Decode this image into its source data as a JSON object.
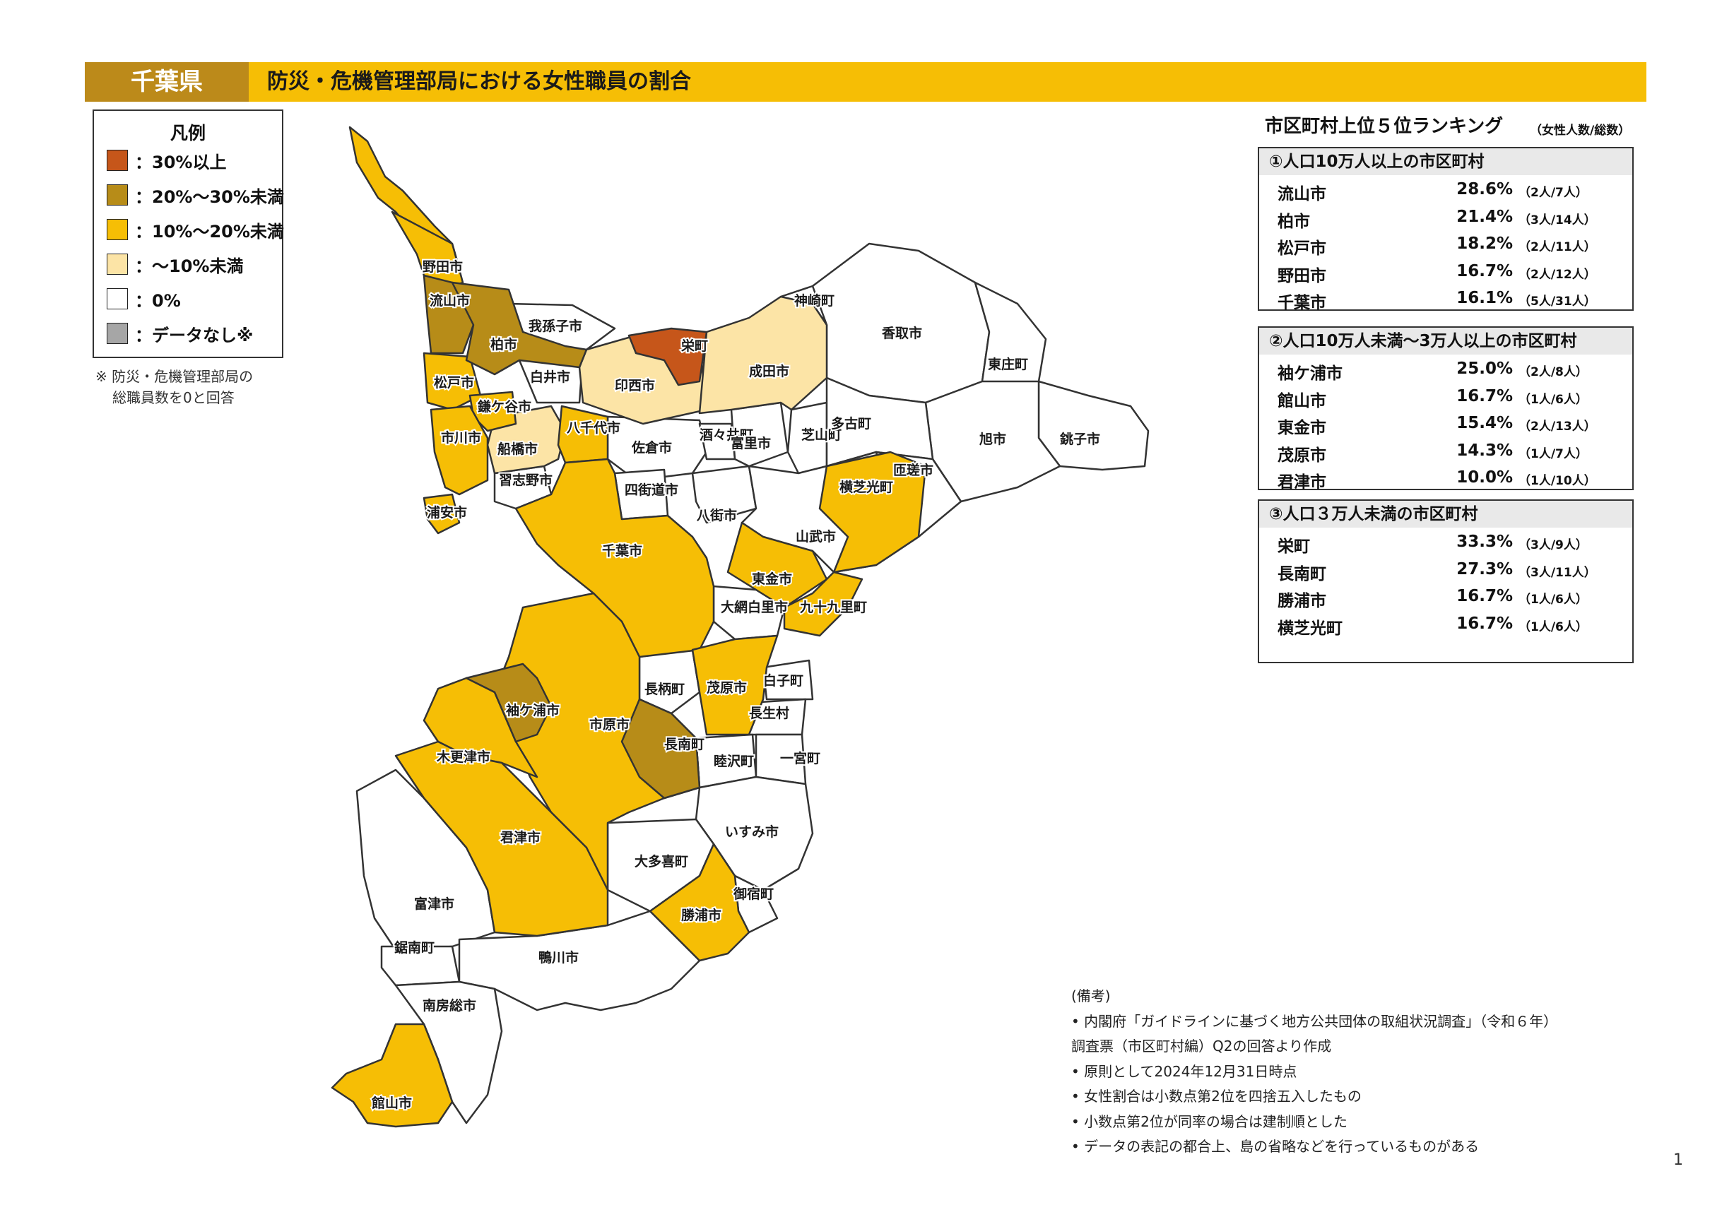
{
  "header": {
    "prefecture": "千葉県",
    "title": "防災・危機管理部局における女性職員の割合"
  },
  "legend": {
    "title": "凡例",
    "items": [
      {
        "label": "：30%以上",
        "color": "#C6561A"
      },
      {
        "label": "：20%～30%未満",
        "color": "#B78C18"
      },
      {
        "label": "：10%～20%未満",
        "color": "#F6BE05"
      },
      {
        "label": "：～10%未満",
        "color": "#FCE4A6"
      },
      {
        "label": "：0%",
        "color": "#FFFFFF"
      },
      {
        "label": "：データなし※",
        "color": "#A6A6A6"
      }
    ],
    "note_line1": "※ 防災・危機管理部局の",
    "note_line2": "総職員数を0と回答"
  },
  "ranking": {
    "title": "市区町村上位５位ランキング",
    "unit": "（女性人数/総数）",
    "groups": [
      {
        "header": "①人口10万人以上の市区町村",
        "rows": [
          {
            "name": "流山市",
            "pct": "28.6%",
            "count": "（2人/7人）"
          },
          {
            "name": "柏市",
            "pct": "21.4%",
            "count": "（3人/14人）"
          },
          {
            "name": "松戸市",
            "pct": "18.2%",
            "count": "（2人/11人）"
          },
          {
            "name": "野田市",
            "pct": "16.7%",
            "count": "（2人/12人）"
          },
          {
            "name": "千葉市",
            "pct": "16.1%",
            "count": "（5人/31人）"
          }
        ]
      },
      {
        "header": "②人口10万人未満～3万人以上の市区町村",
        "rows": [
          {
            "name": "袖ケ浦市",
            "pct": "25.0%",
            "count": "（2人/8人）"
          },
          {
            "name": "館山市",
            "pct": "16.7%",
            "count": "（1人/6人）"
          },
          {
            "name": "東金市",
            "pct": "15.4%",
            "count": "（2人/13人）"
          },
          {
            "name": "茂原市",
            "pct": "14.3%",
            "count": "（1人/7人）"
          },
          {
            "name": "君津市",
            "pct": "10.0%",
            "count": "（1人/10人）"
          }
        ]
      },
      {
        "header": "③人口３万人未満の市区町村",
        "rows": [
          {
            "name": "栄町",
            "pct": "33.3%",
            "count": "（3人/9人）"
          },
          {
            "name": "長南町",
            "pct": "27.3%",
            "count": "（3人/11人）"
          },
          {
            "name": "勝浦市",
            "pct": "16.7%",
            "count": "（1人/6人）"
          },
          {
            "name": "横芝光町",
            "pct": "16.7%",
            "count": "（1人/6人）"
          }
        ]
      }
    ]
  },
  "remarks": {
    "title": "(備考)",
    "lines": [
      "•  内閣府「ガイドラインに基づく地方公共団体の取組状況調査」（令和６年）",
      "    調査票（市区町村編）Q2の回答より作成",
      "•  原則として2024年12月31日時点",
      "•  女性割合は小数点第2位を四捨五入したもの",
      "•  小数点第2位が同率の場合は建制順とした",
      "•  データの表記の都合上、島の省略などを行っているものがある"
    ]
  },
  "page_number": "1",
  "map": {
    "municipalities": [
      {
        "name": "野田市",
        "category": "10-20"
      },
      {
        "name": "流山市",
        "category": "20-30"
      },
      {
        "name": "柏市",
        "category": "20-30"
      },
      {
        "name": "我孫子市",
        "category": "0"
      },
      {
        "name": "栄町",
        "category": "30+"
      },
      {
        "name": "印西市",
        "category": "<10"
      },
      {
        "name": "成田市",
        "category": "<10"
      },
      {
        "name": "神崎町",
        "category": "0"
      },
      {
        "name": "香取市",
        "category": "0"
      },
      {
        "name": "東庄町",
        "category": "0"
      },
      {
        "name": "銚子市",
        "category": "0"
      },
      {
        "name": "旭市",
        "category": "0"
      },
      {
        "name": "松戸市",
        "category": "10-20"
      },
      {
        "name": "白井市",
        "category": "0"
      },
      {
        "name": "鎌ケ谷市",
        "category": "10-20"
      },
      {
        "name": "市川市",
        "category": "10-20"
      },
      {
        "name": "船橋市",
        "category": "<10"
      },
      {
        "name": "八千代市",
        "category": "10-20"
      },
      {
        "name": "佐倉市",
        "category": "0"
      },
      {
        "name": "酒々井町",
        "category": "0"
      },
      {
        "name": "富里市",
        "category": "0"
      },
      {
        "name": "芝山町",
        "category": "0"
      },
      {
        "name": "多古町",
        "category": "0"
      },
      {
        "name": "匝瑳市",
        "category": "0"
      },
      {
        "name": "横芝光町",
        "category": "10-20"
      },
      {
        "name": "浦安市",
        "category": "10-20"
      },
      {
        "name": "習志野市",
        "category": "0"
      },
      {
        "name": "四街道市",
        "category": "0"
      },
      {
        "name": "八街市",
        "category": "0"
      },
      {
        "name": "山武市",
        "category": "0"
      },
      {
        "name": "千葉市",
        "category": "10-20"
      },
      {
        "name": "東金市",
        "category": "10-20"
      },
      {
        "name": "大網白里市",
        "category": "0"
      },
      {
        "name": "九十九里町",
        "category": "10-20"
      },
      {
        "name": "長柄町",
        "category": "0"
      },
      {
        "name": "茂原市",
        "category": "10-20"
      },
      {
        "name": "白子町",
        "category": "0"
      },
      {
        "name": "長生村",
        "category": "0"
      },
      {
        "name": "袖ケ浦市",
        "category": "20-30"
      },
      {
        "name": "市原市",
        "category": "10-20"
      },
      {
        "name": "長南町",
        "category": "20-30"
      },
      {
        "name": "睦沢町",
        "category": "0"
      },
      {
        "name": "一宮町",
        "category": "0"
      },
      {
        "name": "木更津市",
        "category": "10-20"
      },
      {
        "name": "君津市",
        "category": "10-20"
      },
      {
        "name": "いすみ市",
        "category": "0"
      },
      {
        "name": "大多喜町",
        "category": "0"
      },
      {
        "name": "御宿町",
        "category": "0"
      },
      {
        "name": "勝浦市",
        "category": "10-20"
      },
      {
        "name": "富津市",
        "category": "0"
      },
      {
        "name": "鋸南町",
        "category": "0"
      },
      {
        "name": "鴨川市",
        "category": "0"
      },
      {
        "name": "南房総市",
        "category": "0"
      },
      {
        "name": "館山市",
        "category": "10-20"
      }
    ]
  }
}
